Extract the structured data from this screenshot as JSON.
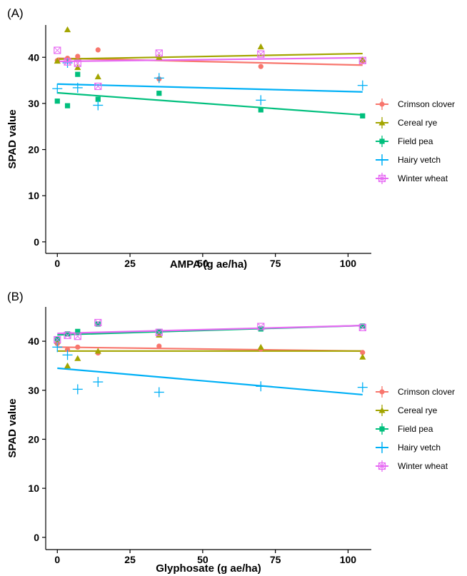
{
  "chart_data": [
    {
      "type": "scatter",
      "panel_label": "(A)",
      "xlabel": "AMPA (g ae/ha)",
      "ylabel": "SPAD value",
      "xlim": [
        -4,
        108
      ],
      "ylim": [
        -2.5,
        47
      ],
      "xticks": [
        0,
        25,
        50,
        75,
        100
      ],
      "yticks": [
        0,
        10,
        20,
        30,
        40
      ],
      "grid": false,
      "legend_position": "right",
      "series": [
        {
          "name": "Crimson clover",
          "color": "#F8766D",
          "marker": "circle",
          "x": [
            0,
            3.5,
            7,
            14,
            35,
            70,
            105
          ],
          "y": [
            39.3,
            39.8,
            40.2,
            41.6,
            35.3,
            38.0,
            39.2
          ],
          "fit": [
            39.8,
            38.3
          ]
        },
        {
          "name": "Cereal rye",
          "color": "#A3A500",
          "marker": "triangle",
          "x": [
            0,
            3.5,
            7,
            14,
            35,
            70,
            105
          ],
          "y": [
            39.2,
            46.0,
            37.8,
            35.8,
            40.0,
            42.3,
            39.5
          ],
          "fit": [
            39.6,
            40.8
          ]
        },
        {
          "name": "Field pea",
          "color": "#00BF7D",
          "marker": "square",
          "x": [
            0,
            3.5,
            7,
            14,
            35,
            70,
            105
          ],
          "y": [
            30.5,
            29.5,
            36.3,
            30.9,
            32.2,
            28.6,
            27.3
          ],
          "fit": [
            32.3,
            27.5
          ]
        },
        {
          "name": "Hairy vetch",
          "color": "#00B0F6",
          "marker": "plus",
          "x": [
            0,
            3.5,
            7,
            14,
            35,
            70,
            105
          ],
          "y": [
            33.2,
            38.8,
            33.4,
            29.6,
            35.5,
            30.7,
            33.9
          ],
          "fit": [
            34.2,
            32.5
          ]
        },
        {
          "name": "Winter wheat",
          "color": "#E76BF3",
          "marker": "boxx",
          "x": [
            0,
            3.5,
            7,
            14,
            35,
            70,
            105
          ],
          "y": [
            41.5,
            39.0,
            38.7,
            33.7,
            40.9,
            40.7,
            39.3
          ],
          "fit": [
            39.1,
            39.9
          ]
        }
      ]
    },
    {
      "type": "scatter",
      "panel_label": "(B)",
      "xlabel": "Glyphosate (g ae/ha)",
      "ylabel": "SPAD value",
      "xlim": [
        -4,
        108
      ],
      "ylim": [
        -2.5,
        47
      ],
      "xticks": [
        0,
        25,
        50,
        75,
        100
      ],
      "yticks": [
        0,
        10,
        20,
        30,
        40
      ],
      "grid": false,
      "legend_position": "right",
      "series": [
        {
          "name": "Crimson clover",
          "color": "#F8766D",
          "marker": "circle",
          "x": [
            0,
            3.5,
            7,
            14,
            35,
            70,
            105
          ],
          "y": [
            39.5,
            38.3,
            38.8,
            37.6,
            39.0,
            38.4,
            37.7
          ],
          "fit": [
            38.8,
            38.0
          ]
        },
        {
          "name": "Cereal rye",
          "color": "#A3A500",
          "marker": "triangle",
          "x": [
            0,
            3.5,
            7,
            14,
            35,
            70,
            105
          ],
          "y": [
            40.0,
            35.0,
            36.5,
            38.0,
            41.3,
            38.8,
            36.8
          ],
          "fit": [
            38.0,
            38.0
          ]
        },
        {
          "name": "Field pea",
          "color": "#00BF7D",
          "marker": "square",
          "x": [
            0,
            3.5,
            7,
            14,
            35,
            70,
            105
          ],
          "y": [
            40.5,
            41.5,
            42.0,
            43.5,
            42.0,
            42.5,
            43.1
          ],
          "fit": [
            41.3,
            43.2
          ]
        },
        {
          "name": "Hairy vetch",
          "color": "#00B0F6",
          "marker": "plus",
          "x": [
            0,
            3.5,
            7,
            14,
            35,
            70,
            105
          ],
          "y": [
            38.8,
            37.2,
            30.2,
            31.7,
            29.6,
            30.8,
            30.6
          ],
          "fit": [
            34.5,
            29.1
          ]
        },
        {
          "name": "Winter wheat",
          "color": "#E76BF3",
          "marker": "boxx",
          "x": [
            0,
            3.5,
            7,
            14,
            35,
            70,
            105
          ],
          "y": [
            40.3,
            41.2,
            41.0,
            43.8,
            41.8,
            43.0,
            42.8
          ],
          "fit": [
            41.6,
            43.2
          ]
        }
      ]
    }
  ]
}
